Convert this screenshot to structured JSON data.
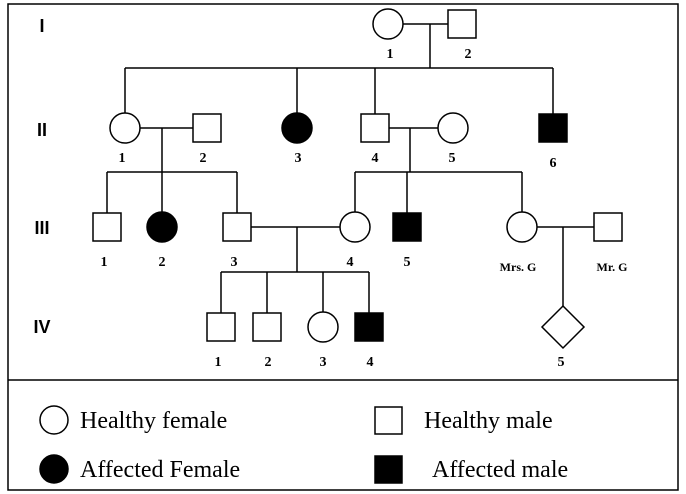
{
  "generations": [
    "I",
    "II",
    "III",
    "IV"
  ],
  "nodes": {
    "I": [
      "1",
      "2"
    ],
    "II": [
      "1",
      "2",
      "3",
      "4",
      "5",
      "6"
    ],
    "III": [
      "1",
      "2",
      "3",
      "4",
      "5",
      "Mrs. G",
      "Mr. G"
    ],
    "IV": [
      "1",
      "2",
      "3",
      "4",
      "5"
    ]
  },
  "legend": [
    "Healthy female",
    "Healthy male",
    "Affected Female",
    "Affected male"
  ]
}
